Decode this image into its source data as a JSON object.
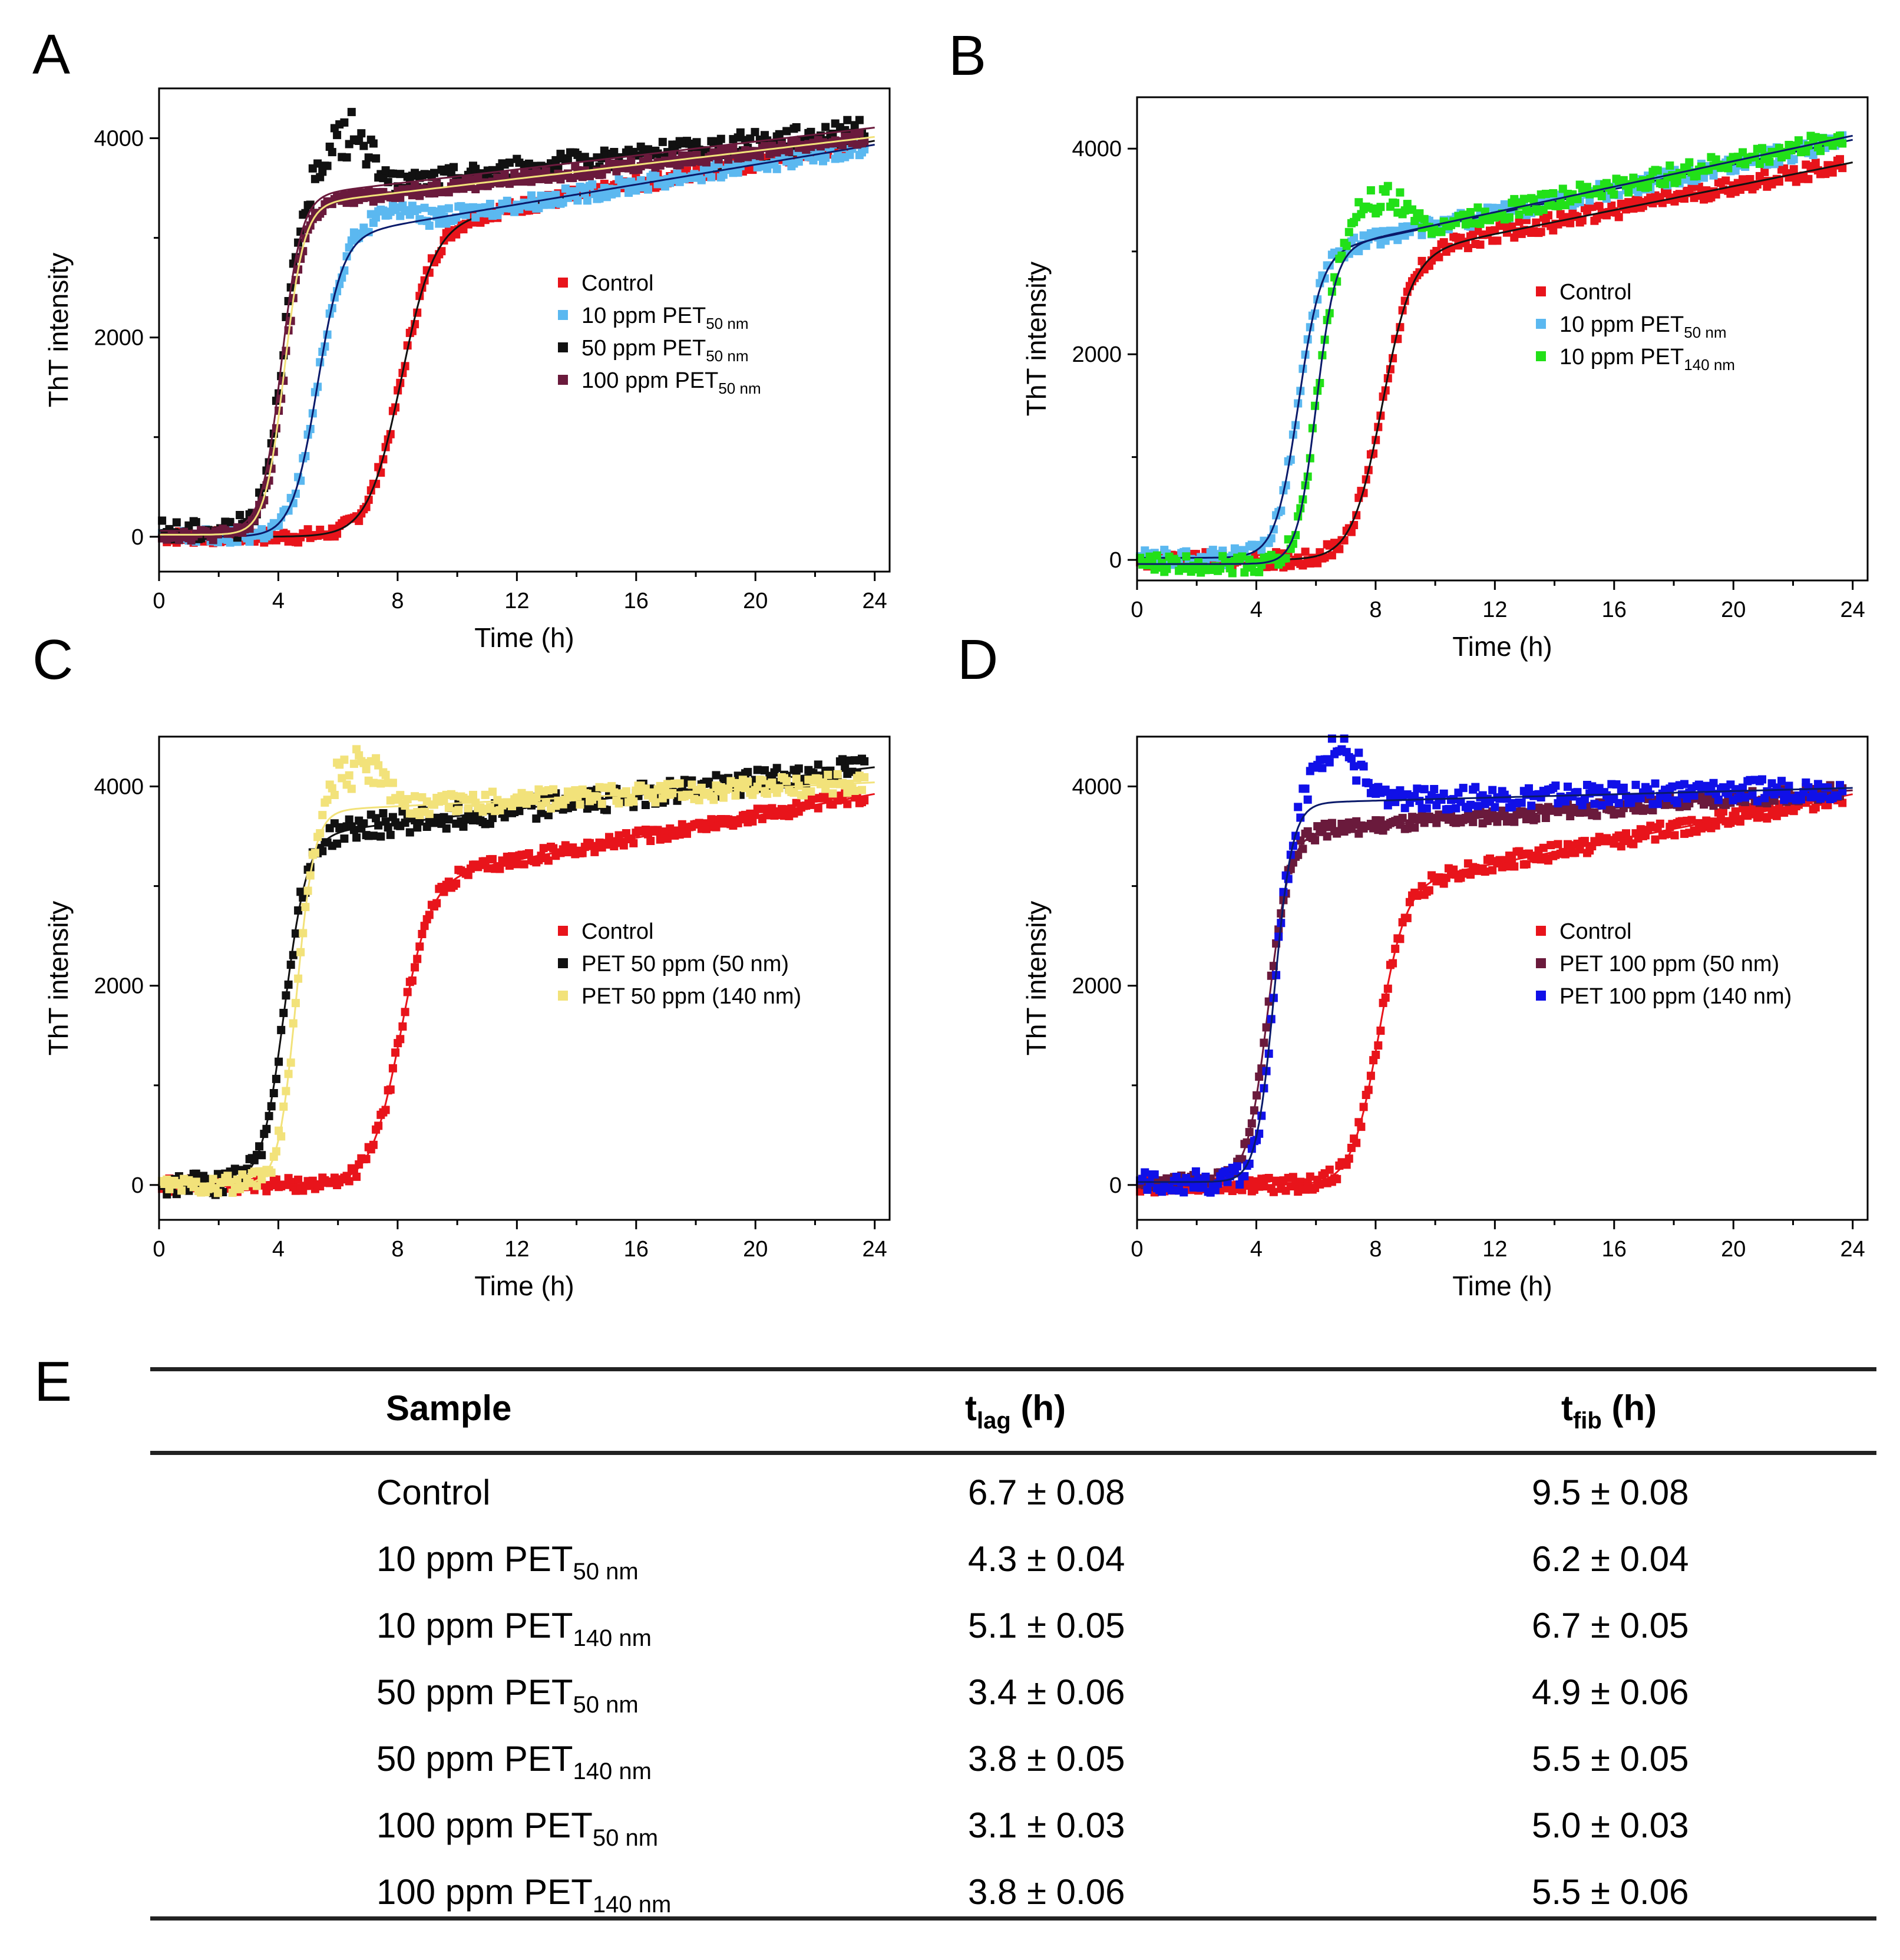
{
  "panels": {
    "A": "A",
    "B": "B",
    "C": "C",
    "D": "D",
    "E": "E"
  },
  "colors": {
    "red": "#e8141b",
    "lightblue": "#5bb8f0",
    "black": "#111111",
    "maroon": "#6a1a3c",
    "green": "#22e018",
    "yellow": "#f2e27a",
    "blue": "#1010e8",
    "fit_dark": "#0a1a6a"
  },
  "chart_data": [
    {
      "type": "scatter",
      "panel": "A",
      "xlabel": "Time (h)",
      "ylabel": "ThT intensity",
      "xlim": [
        0,
        24.5
      ],
      "ylim": [
        -350,
        4500
      ],
      "xticks": [
        "0",
        "4",
        "8",
        "12",
        "16",
        "20",
        "24"
      ],
      "yticks": [
        "0",
        "2000",
        "4000"
      ],
      "legend_position": "middle-right",
      "series": [
        {
          "name": "Control",
          "base": "Control",
          "sub": "",
          "color": "red",
          "fit_color": "black",
          "params": {
            "A": 3100,
            "t0": 8.1,
            "k": 0.55,
            "slope": 55,
            "base": 0
          },
          "noise": 70,
          "overshoot": 0
        },
        {
          "name": "10 ppm PET 50 nm",
          "base": "10 ppm PET",
          "sub": "50 nm",
          "color": "lightblue",
          "fit_color": "fit_dark",
          "params": {
            "A": 3000,
            "t0": 5.3,
            "k": 0.42,
            "slope": 50,
            "base": 0
          },
          "noise": 80,
          "overshoot": 200
        },
        {
          "name": "50 ppm PET 50 nm",
          "base": "50 ppm PET",
          "sub": "50 nm",
          "color": "black",
          "fit_color": "maroon",
          "params": {
            "A": 3350,
            "t0": 4.1,
            "k": 0.33,
            "slope": 35,
            "base": 60
          },
          "noise": 110,
          "overshoot": 600
        },
        {
          "name": "100 ppm PET 50 nm",
          "base": "100 ppm PET",
          "sub": "50 nm",
          "color": "maroon",
          "fit_color": "yellow",
          "params": {
            "A": 3300,
            "t0": 4.2,
            "k": 0.33,
            "slope": 35,
            "base": 20
          },
          "noise": 60,
          "overshoot": 0
        }
      ]
    },
    {
      "type": "scatter",
      "panel": "B",
      "xlabel": "Time (h)",
      "ylabel": "ThT intensity",
      "xlim": [
        0,
        24.5
      ],
      "ylim": [
        -200,
        4500
      ],
      "xticks": [
        "0",
        "4",
        "8",
        "12",
        "16",
        "20",
        "24"
      ],
      "yticks": [
        "0",
        "2000",
        "4000"
      ],
      "legend_position": "middle-right",
      "series": [
        {
          "name": "Control",
          "base": "Control",
          "sub": "",
          "color": "red",
          "fit_color": "black",
          "params": {
            "A": 2950,
            "t0": 8.2,
            "k": 0.5,
            "slope": 58,
            "base": 0
          },
          "noise": 80,
          "overshoot": 0
        },
        {
          "name": "10 ppm PET 50 nm",
          "base": "10 ppm PET",
          "sub": "50 nm",
          "color": "lightblue",
          "fit_color": "fit_dark",
          "params": {
            "A": 2950,
            "t0": 5.4,
            "k": 0.38,
            "slope": 60,
            "base": 20
          },
          "noise": 80,
          "overshoot": 0
        },
        {
          "name": "10 ppm PET 140 nm",
          "base": "10 ppm PET",
          "sub": "140 nm",
          "color": "green",
          "fit_color": "fit_dark",
          "params": {
            "A": 3050,
            "t0": 6.0,
            "k": 0.32,
            "slope": 62,
            "base": -40
          },
          "noise": 90,
          "overshoot": 400
        }
      ]
    },
    {
      "type": "scatter",
      "panel": "C",
      "xlabel": "Time (h)",
      "ylabel": "ThT intensity",
      "xlim": [
        0,
        24.5
      ],
      "ylim": [
        -350,
        4500
      ],
      "xticks": [
        "0",
        "4",
        "8",
        "12",
        "16",
        "20",
        "24"
      ],
      "yticks": [
        "0",
        "2000",
        "4000"
      ],
      "legend_position": "middle-right",
      "series": [
        {
          "name": "Control",
          "base": "Control",
          "sub": "",
          "color": "red",
          "fit_color": "red",
          "params": {
            "A": 3050,
            "t0": 8.1,
            "k": 0.5,
            "slope": 55,
            "base": 0
          },
          "noise": 70,
          "overshoot": 0
        },
        {
          "name": "PET 50 ppm (50 nm)",
          "base": "PET 50 ppm (50 nm)",
          "sub": "",
          "color": "black",
          "fit_color": "black",
          "params": {
            "A": 3500,
            "t0": 4.2,
            "k": 0.38,
            "slope": 35,
            "base": 0
          },
          "noise": 120,
          "overshoot": 0
        },
        {
          "name": "PET 50 ppm (140 nm)",
          "base": "PET 50 ppm (140 nm)",
          "sub": "",
          "color": "yellow",
          "fit_color": "yellow",
          "params": {
            "A": 3750,
            "t0": 4.6,
            "k": 0.3,
            "slope": 15,
            "base": 0
          },
          "noise": 100,
          "overshoot": 500
        }
      ]
    },
    {
      "type": "scatter",
      "panel": "D",
      "xlabel": "Time (h)",
      "ylabel": "ThT intensity",
      "xlim": [
        0,
        24.5
      ],
      "ylim": [
        -350,
        4500
      ],
      "xticks": [
        "0",
        "4",
        "8",
        "12",
        "16",
        "20",
        "24"
      ],
      "yticks": [
        "0",
        "2000",
        "4000"
      ],
      "legend_position": "middle-right",
      "series": [
        {
          "name": "Control",
          "base": "Control",
          "sub": "",
          "color": "red",
          "fit_color": "red",
          "params": {
            "A": 3000,
            "t0": 8.1,
            "k": 0.45,
            "slope": 58,
            "base": 0
          },
          "noise": 80,
          "overshoot": 0
        },
        {
          "name": "PET 100 ppm (50 nm)",
          "base": "PET 100 ppm (50 nm)",
          "sub": "",
          "color": "maroon",
          "fit_color": "maroon",
          "params": {
            "A": 3500,
            "t0": 4.4,
            "k": 0.35,
            "slope": 22,
            "base": 30
          },
          "noise": 70,
          "overshoot": 0
        },
        {
          "name": "PET 100 ppm (140 nm)",
          "base": "PET 100 ppm (140 nm)",
          "sub": "",
          "color": "blue",
          "fit_color": "fit_dark",
          "params": {
            "A": 3800,
            "t0": 4.6,
            "k": 0.3,
            "slope": 8,
            "base": 30
          },
          "noise": 110,
          "overshoot": 600
        }
      ]
    },
    {
      "type": "table",
      "panel": "E",
      "columns": [
        {
          "base": "Sample",
          "sub": ""
        },
        {
          "base": "t",
          "sub": "lag",
          "suffix": " (h)"
        },
        {
          "base": "t",
          "sub": "fib",
          "suffix": " (h)"
        }
      ],
      "rows": [
        {
          "sample": "Control",
          "sample_sub": "",
          "tlag": "6.7 ± 0.08",
          "tfib": "9.5 ± 0.08"
        },
        {
          "sample": "10 ppm  PET",
          "sample_sub": "50 nm",
          "tlag": "4.3 ± 0.04",
          "tfib": "6.2 ± 0.04"
        },
        {
          "sample": "10 ppm  PET",
          "sample_sub": "140 nm",
          "tlag": "5.1 ± 0.05",
          "tfib": "6.7 ± 0.05"
        },
        {
          "sample": "50 ppm  PET",
          "sample_sub": "50 nm",
          "tlag": "3.4 ± 0.06",
          "tfib": "4.9 ± 0.06"
        },
        {
          "sample": "50 ppm  PET",
          "sample_sub": "140 nm",
          "tlag": "3.8 ± 0.05",
          "tfib": "5.5 ± 0.05"
        },
        {
          "sample": "100 ppm  PET",
          "sample_sub": "50 nm",
          "tlag": "3.1 ± 0.03",
          "tfib": "5.0 ± 0.03"
        },
        {
          "sample": "100 ppm  PET",
          "sample_sub": "140 nm",
          "tlag": "3.8 ± 0.06",
          "tfib": "5.5 ± 0.06"
        }
      ]
    }
  ]
}
